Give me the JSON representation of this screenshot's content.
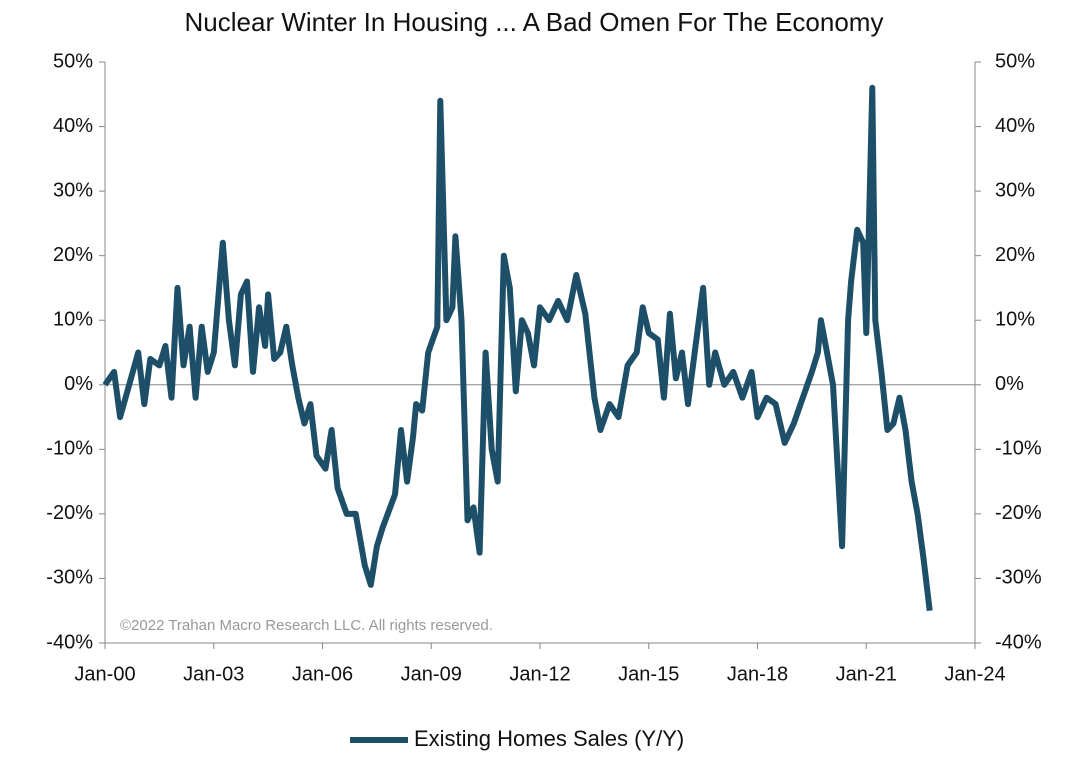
{
  "chart_data": {
    "type": "line",
    "title": "Nuclear Winter In Housing ... A Bad Omen For The Economy",
    "annotation": "©2022 Trahan Macro Research LLC. All rights reserved.",
    "x": [
      "Jan-00",
      "Apr-00",
      "Jun-00",
      "Sep-00",
      "Dec-00",
      "Feb-01",
      "Apr-01",
      "Jul-01",
      "Sep-01",
      "Nov-01",
      "Jan-02",
      "Mar-02",
      "May-02",
      "Jul-02",
      "Sep-02",
      "Nov-02",
      "Jan-03",
      "Apr-03",
      "Jun-03",
      "Aug-03",
      "Oct-03",
      "Dec-03",
      "Feb-04",
      "Apr-04",
      "Jun-04",
      "Jul-04",
      "Sep-04",
      "Nov-04",
      "Jan-05",
      "Mar-05",
      "May-05",
      "Jul-05",
      "Sep-05",
      "Nov-05",
      "Feb-06",
      "Apr-06",
      "Jun-06",
      "Sep-06",
      "Dec-06",
      "Mar-07",
      "May-07",
      "Jul-07",
      "Sep-07",
      "Jan-08",
      "Mar-08",
      "May-08",
      "Jul-08",
      "Aug-08",
      "Oct-08",
      "Dec-08",
      "Mar-09",
      "Apr-09",
      "Jun-09",
      "Aug-09",
      "Sep-09",
      "Nov-09",
      "Jan-10",
      "Mar-10",
      "May-10",
      "Jul-10",
      "Sep-10",
      "Nov-10",
      "Jan-11",
      "Mar-11",
      "May-11",
      "Jul-11",
      "Sep-11",
      "Nov-11",
      "Jan-12",
      "Apr-12",
      "Jul-12",
      "Oct-12",
      "Jan-13",
      "Apr-13",
      "Jul-13",
      "Sep-13",
      "Dec-13",
      "Mar-14",
      "Jun-14",
      "Sep-14",
      "Nov-14",
      "Jan-15",
      "Apr-15",
      "Jun-15",
      "Aug-15",
      "Oct-15",
      "Dec-15",
      "Feb-16",
      "Jul-16",
      "Sep-16",
      "Nov-16",
      "Feb-17",
      "May-17",
      "Aug-17",
      "Nov-17",
      "Jan-18",
      "Apr-18",
      "Jul-18",
      "Oct-18",
      "Jan-19",
      "Apr-19",
      "Jul-19",
      "Sep-19",
      "Oct-19",
      "Dec-19",
      "Feb-20",
      "May-20",
      "Jul-20",
      "Aug-20",
      "Oct-20",
      "Dec-20",
      "Jan-21",
      "Mar-21",
      "Apr-21",
      "Jun-21",
      "Aug-21",
      "Oct-21",
      "Dec-21",
      "Feb-22",
      "Apr-22",
      "Jun-22",
      "Aug-22",
      "Oct-22"
    ],
    "series": [
      {
        "name": "Existing Homes Sales (Y/Y)",
        "color": "#1d5068",
        "values": [
          0,
          2,
          -5,
          0,
          5,
          -3,
          4,
          3,
          6,
          -2,
          15,
          3,
          9,
          -2,
          9,
          2,
          5,
          22,
          10,
          3,
          14,
          16,
          2,
          12,
          6,
          14,
          4,
          5,
          9,
          3,
          -2,
          -6,
          -3,
          -11,
          -13,
          -7,
          -16,
          -20,
          -20,
          -28,
          -31,
          -25,
          -22,
          -17,
          -7,
          -15,
          -8,
          -3,
          -4,
          5,
          9,
          44,
          10,
          12,
          23,
          10,
          -21,
          -19,
          -26,
          5,
          -10,
          -15,
          20,
          15,
          -1,
          10,
          8,
          3,
          12,
          10,
          13,
          10,
          17,
          11,
          -2,
          -7,
          -3,
          -5,
          3,
          5,
          12,
          8,
          7,
          -2,
          11,
          1,
          5,
          -3,
          15,
          0,
          5,
          0,
          2,
          -2,
          2,
          -5,
          -2,
          -3,
          -9,
          -6,
          -2,
          2,
          5,
          10,
          5,
          0,
          -25,
          10,
          16,
          24,
          22,
          8,
          46,
          10,
          2,
          -7,
          -6,
          -2,
          -7,
          -15,
          -20,
          -27,
          -35
        ]
      }
    ],
    "xlim": [
      "Jan-00",
      "Jan-24"
    ],
    "xticks": [
      "Jan-00",
      "Jan-03",
      "Jan-06",
      "Jan-09",
      "Jan-12",
      "Jan-15",
      "Jan-18",
      "Jan-21",
      "Jan-24"
    ],
    "ylim": [
      -40,
      50
    ],
    "yticks": [
      {
        "value": -40,
        "label": "-40%"
      },
      {
        "value": -30,
        "label": "-30%"
      },
      {
        "value": -20,
        "label": "-20%"
      },
      {
        "value": -10,
        "label": "-10%"
      },
      {
        "value": 0,
        "label": "0%"
      },
      {
        "value": 10,
        "label": "10%"
      },
      {
        "value": 20,
        "label": "20%"
      },
      {
        "value": 30,
        "label": "30%"
      },
      {
        "value": 40,
        "label": "40%"
      },
      {
        "value": 50,
        "label": "50%"
      }
    ],
    "y2lim": [
      -40,
      50
    ],
    "y2ticks": [
      {
        "value": -40,
        "label": "-40%"
      },
      {
        "value": -30,
        "label": "-30%"
      },
      {
        "value": -20,
        "label": "-20%"
      },
      {
        "value": -10,
        "label": "-10%"
      },
      {
        "value": 0,
        "label": "0%"
      },
      {
        "value": 10,
        "label": "10%"
      },
      {
        "value": 20,
        "label": "20%"
      },
      {
        "value": 30,
        "label": "30%"
      },
      {
        "value": 40,
        "label": "40%"
      },
      {
        "value": 50,
        "label": "50%"
      }
    ]
  }
}
